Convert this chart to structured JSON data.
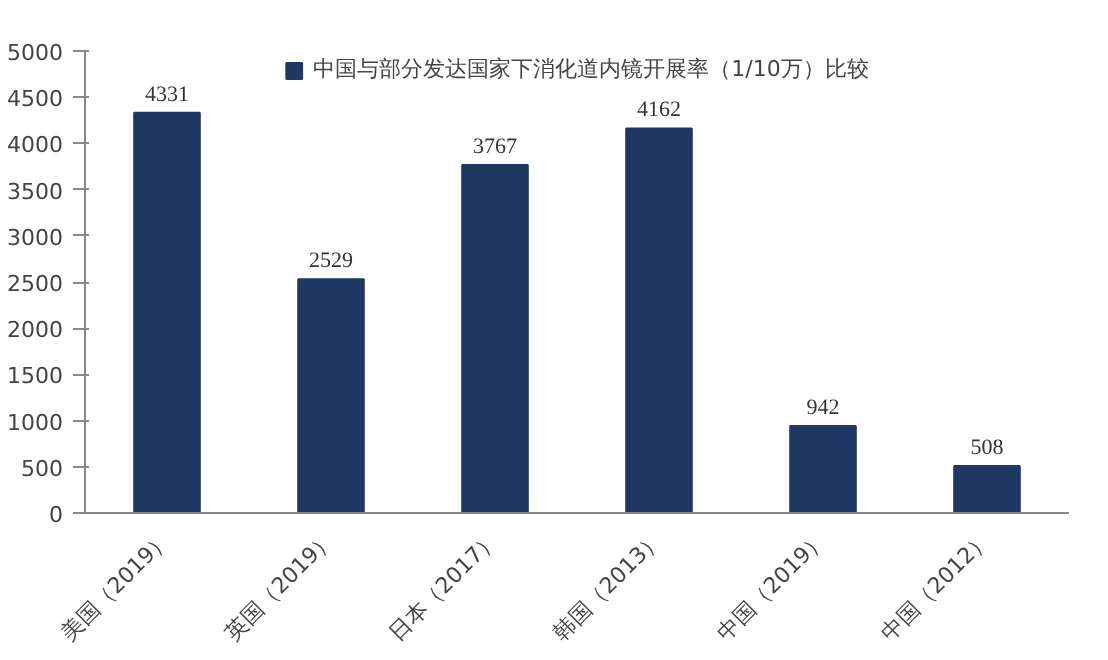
{
  "chart_data": {
    "type": "bar",
    "categories": [
      "美国（2019）",
      "英国（2019）",
      "日本（2017）",
      "韩国（2013）",
      "中国（2019）",
      "中国（2012）"
    ],
    "series": [
      {
        "name": "中国与部分发达国家下消化道内镜开展率（1/10万）比较",
        "color": "#1f3864",
        "values": [
          4331,
          2529,
          3767,
          4162,
          942,
          508
        ]
      }
    ],
    "ylim": [
      0,
      5000
    ],
    "yticks": [
      0,
      500,
      1000,
      1500,
      2000,
      2500,
      3000,
      3500,
      4000,
      4500,
      5000
    ],
    "data_labels": true,
    "grid": false,
    "legend": "top"
  }
}
